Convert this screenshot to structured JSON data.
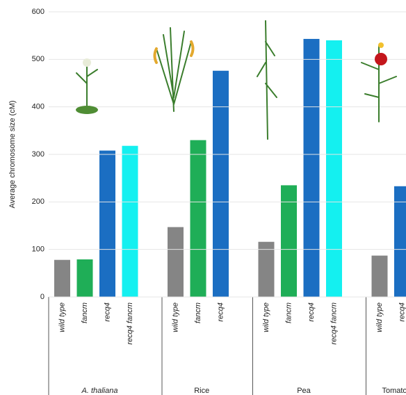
{
  "chart_data": {
    "type": "bar",
    "y_label": "Average chromosome size (cM)",
    "ylim": [
      0,
      600
    ],
    "yticks": [
      0,
      100,
      200,
      300,
      400,
      500,
      600
    ],
    "grid": true,
    "groups": [
      {
        "name": "A. thaliana",
        "categories": [
          "wild type",
          "fancm",
          "recq4",
          "recq4 fancm"
        ],
        "values": [
          78,
          79,
          308,
          318
        ],
        "colors": [
          "#858585",
          "#1fae57",
          "#1b6ec2",
          "#14f0f0"
        ]
      },
      {
        "name": "Rice",
        "categories": [
          "wild type",
          "fancm",
          "recq4"
        ],
        "values": [
          147,
          330,
          476
        ],
        "colors": [
          "#858585",
          "#1fae57",
          "#1b6ec2"
        ]
      },
      {
        "name": "Pea",
        "categories": [
          "wild type",
          "fancm",
          "recq4",
          "recq4 fancm"
        ],
        "values": [
          116,
          235,
          543,
          540
        ],
        "colors": [
          "#858585",
          "#1fae57",
          "#1b6ec2",
          "#14f0f0"
        ]
      },
      {
        "name": "Tomato",
        "categories": [
          "wild type",
          "recq4"
        ],
        "values": [
          87,
          233
        ],
        "colors": [
          "#858585",
          "#1b6ec2"
        ]
      }
    ]
  }
}
